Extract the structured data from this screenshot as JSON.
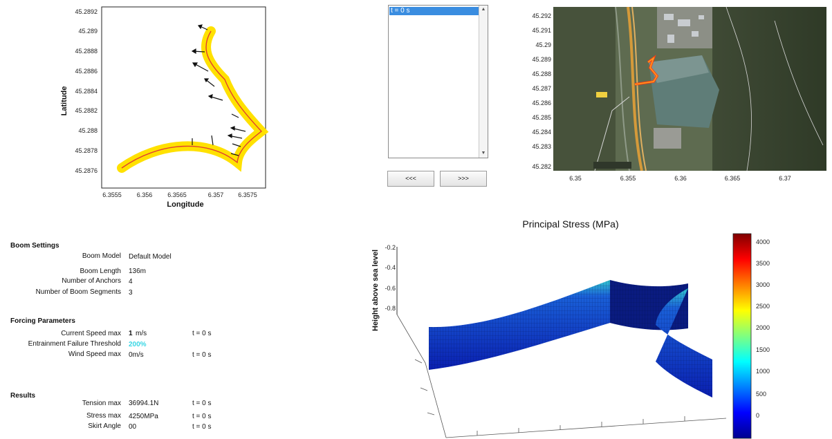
{
  "trajectory_plot": {
    "xlabel": "Longitude",
    "ylabel": "Latitude",
    "xticks": [
      "6.3555",
      "6.356",
      "6.3565",
      "6.357",
      "6.3575"
    ],
    "yticks": [
      "45.2892",
      "45.289",
      "45.2888",
      "45.2886",
      "45.2884",
      "45.2882",
      "45.288",
      "45.2878",
      "45.2876"
    ]
  },
  "time_list": {
    "items": [
      "t = 0 s"
    ],
    "selected_index": 0
  },
  "nav": {
    "prev_label": "<<<",
    "next_label": ">>>"
  },
  "map": {
    "yticks": [
      "45.292",
      "45.291",
      "45.29",
      "45.289",
      "45.288",
      "45.287",
      "45.286",
      "45.285",
      "45.284",
      "45.283",
      "45.282"
    ],
    "xticks": [
      "6.35",
      "6.355",
      "6.36",
      "6.365",
      "6.37"
    ]
  },
  "boom_settings": {
    "title": "Boom Settings",
    "rows": [
      {
        "label": "Boom Model",
        "value": "Default Model"
      },
      {
        "label": "Boom Length",
        "value": "136m"
      },
      {
        "label": "Number of Anchors",
        "value": "4"
      },
      {
        "label": "Number of Boom Segments",
        "value": "3"
      }
    ]
  },
  "forcing": {
    "title": "Forcing Parameters",
    "current_speed": {
      "label": "Current Speed max",
      "value": "1",
      "unit": "m/s",
      "time": "t = 0  s"
    },
    "entrainment": {
      "label": "Entrainment Failure Threshold",
      "value": "200%"
    },
    "wind_speed": {
      "label": "Wind Speed max",
      "value": "0m/s",
      "time": "t = 0  s"
    }
  },
  "results": {
    "title": "Results",
    "rows": [
      {
        "label": "Tension max",
        "value": "36994.1N",
        "time": "t = 0  s"
      },
      {
        "label": "Stress max",
        "value": "4250MPa",
        "time": "t = 0  s"
      },
      {
        "label": "Skirt Angle",
        "value": "00",
        "time": "t = 0  s"
      }
    ]
  },
  "stress_plot": {
    "title": "Principal Stress (MPa)",
    "zlabel": "Height above sea level",
    "zticks": [
      "-0.2",
      "-0.4",
      "-0.6",
      "-0.8"
    ],
    "colorbar_ticks": [
      "4000",
      "3500",
      "3000",
      "2500",
      "2000",
      "1500",
      "1000",
      "500",
      "0"
    ]
  },
  "colors": {
    "accent": "#3a8de0",
    "threshold_text": "#38d6e4",
    "trajectory": "#ffe100",
    "boom_line": "#e04030"
  }
}
